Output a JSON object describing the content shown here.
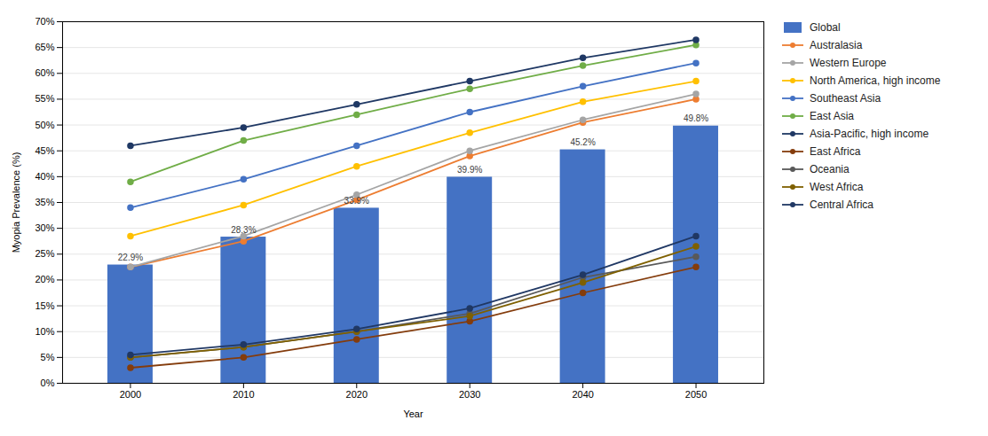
{
  "chart_data": {
    "type": "bar",
    "x": [
      2000,
      2010,
      2020,
      2030,
      2040,
      2050
    ],
    "xlim": [
      1994,
      2056
    ],
    "xticks": [
      2000,
      2010,
      2020,
      2030,
      2040,
      2050
    ],
    "ylim": [
      0,
      70
    ],
    "yticks": [
      {
        "value": 0,
        "label": "0%"
      },
      {
        "value": 5,
        "label": "5%"
      },
      {
        "value": 10,
        "label": "10%"
      },
      {
        "value": 15,
        "label": "15%"
      },
      {
        "value": 20,
        "label": "20%"
      },
      {
        "value": 25,
        "label": "25%"
      },
      {
        "value": 30,
        "label": "30%"
      },
      {
        "value": 35,
        "label": "35%"
      },
      {
        "value": 40,
        "label": "40%"
      },
      {
        "value": 45,
        "label": "45%"
      },
      {
        "value": 50,
        "label": "50%"
      },
      {
        "value": 55,
        "label": "55%"
      },
      {
        "value": 60,
        "label": "60%"
      },
      {
        "value": 65,
        "label": "65%"
      },
      {
        "value": 70,
        "label": "70%"
      }
    ],
    "xlabel": "Year",
    "ylabel": "Myopia Prevalence (%)",
    "grid": true,
    "legend": "right",
    "data_labels": true,
    "series": [
      {
        "name": "Global",
        "type": "bar",
        "color": "#4472C4",
        "values": [
          22.9,
          28.3,
          33.9,
          39.9,
          45.2,
          49.8
        ],
        "value_labels": [
          "22.9%",
          "28.3%",
          "33.9%",
          "39.9%",
          "45.2%",
          "49.8%"
        ]
      },
      {
        "name": "Australasia",
        "type": "line",
        "color": "#ED7D31",
        "marker": "circle",
        "values": [
          22.5,
          27.5,
          35.5,
          44.0,
          50.5,
          55.0
        ]
      },
      {
        "name": "Western Europe",
        "type": "line",
        "color": "#A5A5A5",
        "marker": "circle",
        "values": [
          22.5,
          28.5,
          36.5,
          45.0,
          51.0,
          56.0
        ]
      },
      {
        "name": "North America, high income",
        "type": "line",
        "color": "#FFC000",
        "marker": "circle",
        "values": [
          28.5,
          34.5,
          42.0,
          48.5,
          54.5,
          58.5
        ]
      },
      {
        "name": "Southeast Asia",
        "type": "line",
        "color": "#4472C4",
        "marker": "circle",
        "values": [
          34.0,
          39.5,
          46.0,
          52.5,
          57.5,
          62.0
        ]
      },
      {
        "name": "East Asia",
        "type": "line",
        "color": "#70AD47",
        "marker": "circle",
        "values": [
          39.0,
          47.0,
          52.0,
          57.0,
          61.5,
          65.5
        ]
      },
      {
        "name": "Asia-Pacific, high income",
        "type": "line",
        "color": "#1F3864",
        "marker": "circle",
        "values": [
          46.0,
          49.5,
          54.0,
          58.5,
          63.0,
          66.5
        ]
      },
      {
        "name": "East Africa",
        "type": "line",
        "color": "#843C0C",
        "marker": "circle",
        "values": [
          3.0,
          5.0,
          8.5,
          12.0,
          17.5,
          22.5
        ]
      },
      {
        "name": "Oceania",
        "type": "line",
        "color": "#595959",
        "marker": "circle",
        "values": [
          5.0,
          7.0,
          10.0,
          13.5,
          20.5,
          24.5
        ]
      },
      {
        "name": "West Africa",
        "type": "line",
        "color": "#7F6000",
        "marker": "circle",
        "values": [
          5.0,
          7.0,
          10.0,
          13.0,
          19.5,
          26.5
        ]
      },
      {
        "name": "Central Africa",
        "type": "line",
        "color": "#203864",
        "marker": "circle",
        "values": [
          5.5,
          7.5,
          10.5,
          14.5,
          21.0,
          28.5
        ]
      }
    ]
  }
}
